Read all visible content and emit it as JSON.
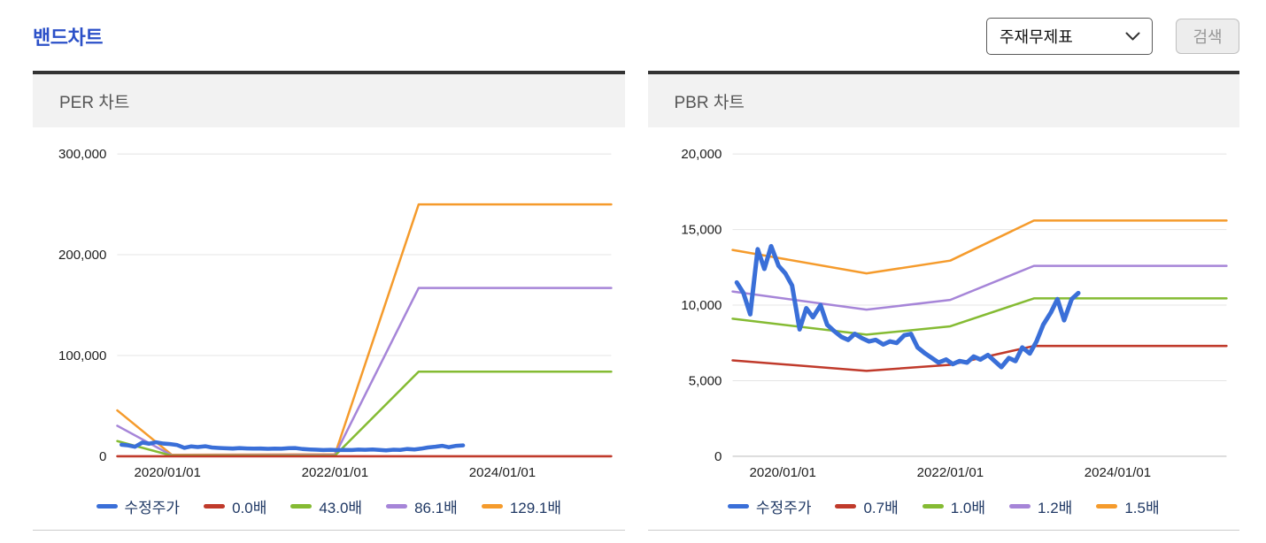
{
  "header": {
    "page_title": "밴드차트",
    "statement_select": {
      "value": "주재무제표"
    },
    "search_button_label": "검색"
  },
  "chart_data": [
    {
      "type": "line",
      "title": "PER 차트",
      "x_domain": [
        2019.4,
        2025.3
      ],
      "y_domain": [
        0,
        300000
      ],
      "y_ticks": [
        0,
        100000,
        200000,
        300000
      ],
      "x_ticks": [
        {
          "x": 2020.0,
          "label": "2020/01/01"
        },
        {
          "x": 2022.0,
          "label": "2022/01/01"
        },
        {
          "x": 2024.0,
          "label": "2024/01/01"
        }
      ],
      "grid": "horizontal-gridlines",
      "legend_position": "bottom",
      "series": [
        {
          "name": "수정주가",
          "color": "#3a6fd8",
          "width": 4.5,
          "points": [
            [
              2019.45,
              11500
            ],
            [
              2019.53,
              10800
            ],
            [
              2019.61,
              9400
            ],
            [
              2019.7,
              13700
            ],
            [
              2019.78,
              12400
            ],
            [
              2019.86,
              13900
            ],
            [
              2019.95,
              12600
            ],
            [
              2020.03,
              12100
            ],
            [
              2020.11,
              11300
            ],
            [
              2020.2,
              8400
            ],
            [
              2020.28,
              9800
            ],
            [
              2020.36,
              9200
            ],
            [
              2020.45,
              10000
            ],
            [
              2020.53,
              8700
            ],
            [
              2020.61,
              8300
            ],
            [
              2020.7,
              7900
            ],
            [
              2020.78,
              7700
            ],
            [
              2020.86,
              8100
            ],
            [
              2020.95,
              7800
            ],
            [
              2021.03,
              7600
            ],
            [
              2021.11,
              7700
            ],
            [
              2021.2,
              7400
            ],
            [
              2021.28,
              7600
            ],
            [
              2021.36,
              7500
            ],
            [
              2021.45,
              8000
            ],
            [
              2021.53,
              8100
            ],
            [
              2021.61,
              7200
            ],
            [
              2021.7,
              6800
            ],
            [
              2021.78,
              6500
            ],
            [
              2021.86,
              6200
            ],
            [
              2021.95,
              6400
            ],
            [
              2022.03,
              6100
            ],
            [
              2022.11,
              6300
            ],
            [
              2022.2,
              6200
            ],
            [
              2022.28,
              6600
            ],
            [
              2022.36,
              6400
            ],
            [
              2022.45,
              6700
            ],
            [
              2022.53,
              6300
            ],
            [
              2022.61,
              5900
            ],
            [
              2022.7,
              6500
            ],
            [
              2022.78,
              6300
            ],
            [
              2022.86,
              7200
            ],
            [
              2022.95,
              6800
            ],
            [
              2023.03,
              7600
            ],
            [
              2023.11,
              8700
            ],
            [
              2023.2,
              9500
            ],
            [
              2023.28,
              10400
            ],
            [
              2023.36,
              9000
            ],
            [
              2023.45,
              10400
            ],
            [
              2023.53,
              10800
            ]
          ]
        },
        {
          "name": "0.0배",
          "color": "#c03a2b",
          "width": 2.5,
          "points": [
            [
              2019.4,
              0
            ],
            [
              2025.3,
              0
            ]
          ]
        },
        {
          "name": "43.0배",
          "color": "#85bb33",
          "width": 2.5,
          "points": [
            [
              2019.4,
              15100
            ],
            [
              2020.05,
              600
            ],
            [
              2022.0,
              700
            ],
            [
              2023.0,
              84000
            ],
            [
              2025.3,
              84000
            ]
          ]
        },
        {
          "name": "86.1배",
          "color": "#a685d8",
          "width": 2.5,
          "points": [
            [
              2019.4,
              30300
            ],
            [
              2020.05,
              1000
            ],
            [
              2022.0,
              1300
            ],
            [
              2023.0,
              167000
            ],
            [
              2025.3,
              167000
            ]
          ]
        },
        {
          "name": "129.1배",
          "color": "#f59b2c",
          "width": 2.5,
          "points": [
            [
              2019.4,
              45500
            ],
            [
              2020.05,
              1500
            ],
            [
              2022.0,
              2000
            ],
            [
              2023.0,
              250000
            ],
            [
              2025.3,
              250000
            ]
          ]
        }
      ]
    },
    {
      "type": "line",
      "title": "PBR 차트",
      "x_domain": [
        2019.4,
        2025.3
      ],
      "y_domain": [
        0,
        20000
      ],
      "y_ticks": [
        0,
        5000,
        10000,
        15000,
        20000
      ],
      "x_ticks": [
        {
          "x": 2020.0,
          "label": "2020/01/01"
        },
        {
          "x": 2022.0,
          "label": "2022/01/01"
        },
        {
          "x": 2024.0,
          "label": "2024/01/01"
        }
      ],
      "grid": "horizontal-gridlines",
      "legend_position": "bottom",
      "series": [
        {
          "name": "수정주가",
          "color": "#3a6fd8",
          "width": 5,
          "points": [
            [
              2019.45,
              11500
            ],
            [
              2019.53,
              10800
            ],
            [
              2019.61,
              9400
            ],
            [
              2019.7,
              13700
            ],
            [
              2019.78,
              12400
            ],
            [
              2019.86,
              13900
            ],
            [
              2019.95,
              12600
            ],
            [
              2020.03,
              12100
            ],
            [
              2020.11,
              11300
            ],
            [
              2020.2,
              8400
            ],
            [
              2020.28,
              9800
            ],
            [
              2020.36,
              9200
            ],
            [
              2020.45,
              10000
            ],
            [
              2020.53,
              8700
            ],
            [
              2020.61,
              8300
            ],
            [
              2020.7,
              7900
            ],
            [
              2020.78,
              7700
            ],
            [
              2020.86,
              8100
            ],
            [
              2020.95,
              7800
            ],
            [
              2021.03,
              7600
            ],
            [
              2021.11,
              7700
            ],
            [
              2021.2,
              7400
            ],
            [
              2021.28,
              7600
            ],
            [
              2021.36,
              7500
            ],
            [
              2021.45,
              8000
            ],
            [
              2021.53,
              8100
            ],
            [
              2021.61,
              7200
            ],
            [
              2021.7,
              6800
            ],
            [
              2021.78,
              6500
            ],
            [
              2021.86,
              6200
            ],
            [
              2021.95,
              6400
            ],
            [
              2022.03,
              6100
            ],
            [
              2022.11,
              6300
            ],
            [
              2022.2,
              6200
            ],
            [
              2022.28,
              6600
            ],
            [
              2022.36,
              6400
            ],
            [
              2022.45,
              6700
            ],
            [
              2022.53,
              6300
            ],
            [
              2022.61,
              5900
            ],
            [
              2022.7,
              6500
            ],
            [
              2022.78,
              6300
            ],
            [
              2022.86,
              7200
            ],
            [
              2022.95,
              6800
            ],
            [
              2023.03,
              7600
            ],
            [
              2023.11,
              8700
            ],
            [
              2023.2,
              9500
            ],
            [
              2023.28,
              10400
            ],
            [
              2023.36,
              9000
            ],
            [
              2023.45,
              10400
            ],
            [
              2023.53,
              10800
            ]
          ]
        },
        {
          "name": "0.7배",
          "color": "#c03a2b",
          "width": 2.5,
          "points": [
            [
              2019.4,
              6350
            ],
            [
              2021.0,
              5650
            ],
            [
              2022.0,
              6050
            ],
            [
              2023.0,
              7300
            ],
            [
              2025.3,
              7300
            ]
          ]
        },
        {
          "name": "1.0배",
          "color": "#85bb33",
          "width": 2.5,
          "points": [
            [
              2019.4,
              9100
            ],
            [
              2021.0,
              8050
            ],
            [
              2022.0,
              8600
            ],
            [
              2023.0,
              10450
            ],
            [
              2025.3,
              10450
            ]
          ]
        },
        {
          "name": "1.2배",
          "color": "#a685d8",
          "width": 2.5,
          "points": [
            [
              2019.4,
              10900
            ],
            [
              2021.0,
              9700
            ],
            [
              2022.0,
              10350
            ],
            [
              2023.0,
              12600
            ],
            [
              2025.3,
              12600
            ]
          ]
        },
        {
          "name": "1.5배",
          "color": "#f59b2c",
          "width": 2.5,
          "points": [
            [
              2019.4,
              13650
            ],
            [
              2021.0,
              12100
            ],
            [
              2022.0,
              12950
            ],
            [
              2023.0,
              15600
            ],
            [
              2025.3,
              15600
            ]
          ]
        }
      ]
    }
  ]
}
